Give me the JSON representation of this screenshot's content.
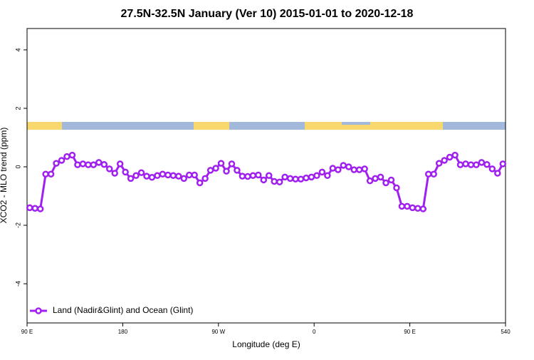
{
  "chart_data": {
    "type": "line",
    "title": "27.5N-32.5N January (Ver 10)   2015-01-01 to 2020-12-18",
    "x_label": "Longitude (deg E)",
    "y_label": "XCO2 - MLO trend (ppm)",
    "x": [
      92.5,
      97.5,
      102.5,
      107.5,
      112.5,
      117.5,
      122.5,
      127.5,
      132.5,
      137.5,
      142.5,
      147.5,
      152.5,
      157.5,
      162.5,
      167.5,
      172.5,
      177.5,
      182.5,
      187.5,
      192.5,
      197.5,
      202.5,
      207.5,
      212.5,
      217.5,
      222.5,
      227.5,
      232.5,
      237.5,
      242.5,
      247.5,
      252.5,
      257.5,
      262.5,
      267.5,
      272.5,
      277.5,
      282.5,
      287.5,
      292.5,
      297.5,
      302.5,
      307.5,
      312.5,
      317.5,
      322.5,
      327.5,
      332.5,
      337.5,
      342.5,
      347.5,
      352.5,
      357.5,
      362.5,
      367.5,
      372.5,
      377.5,
      382.5,
      387.5,
      392.5,
      397.5,
      402.5,
      407.5,
      412.5,
      417.5,
      422.5,
      427.5,
      432.5,
      437.5,
      442.5,
      447.5,
      452.5,
      457.5,
      462.5,
      467.5,
      472.5,
      477.5,
      482.5,
      487.5,
      492.5,
      497.5,
      502.5,
      507.5,
      512.5,
      517.5,
      522.5,
      527.5,
      532.5,
      537.5
    ],
    "series": [
      {
        "name": "Land (Nadir&Glint) and Ocean (Glint)",
        "color": "#a020f0",
        "values": [
          -1.4,
          -1.42,
          -1.44,
          -0.25,
          -0.25,
          0.12,
          0.22,
          0.35,
          0.4,
          0.07,
          0.1,
          0.07,
          0.07,
          0.15,
          0.08,
          -0.07,
          -0.22,
          0.1,
          -0.18,
          -0.4,
          -0.3,
          -0.2,
          -0.32,
          -0.36,
          -0.3,
          -0.25,
          -0.28,
          -0.3,
          -0.32,
          -0.4,
          -0.28,
          -0.28,
          -0.55,
          -0.4,
          -0.12,
          -0.05,
          0.12,
          -0.15,
          0.1,
          -0.12,
          -0.32,
          -0.33,
          -0.3,
          -0.28,
          -0.45,
          -0.3,
          -0.5,
          -0.52,
          -0.35,
          -0.4,
          -0.42,
          -0.42,
          -0.38,
          -0.35,
          -0.3,
          -0.18,
          -0.3,
          -0.05,
          -0.1,
          0.05,
          0.0,
          -0.1,
          -0.1,
          -0.07,
          -0.48,
          -0.4,
          -0.35,
          -0.55,
          -0.45,
          -0.72,
          -1.35,
          -1.35,
          -1.4,
          -1.42,
          -1.44,
          -0.25,
          -0.25,
          0.12,
          0.22,
          0.33,
          0.4,
          0.07,
          0.1,
          0.07,
          0.07,
          0.15,
          0.08,
          -0.07,
          -0.22,
          0.1
        ]
      }
    ],
    "xlim": [
      90,
      540
    ],
    "xticks": [
      {
        "value": 90,
        "label": "90 E"
      },
      180,
      {
        "value": 270,
        "label": "90 W"
      },
      {
        "value": 360,
        "label": "0"
      },
      {
        "value": 450,
        "label": "90 E"
      },
      540
    ],
    "ylim": [
      -5.34,
      4.73
    ],
    "yticks": [
      -4,
      -2,
      0,
      2,
      4
    ],
    "legend": "bottom-left"
  }
}
